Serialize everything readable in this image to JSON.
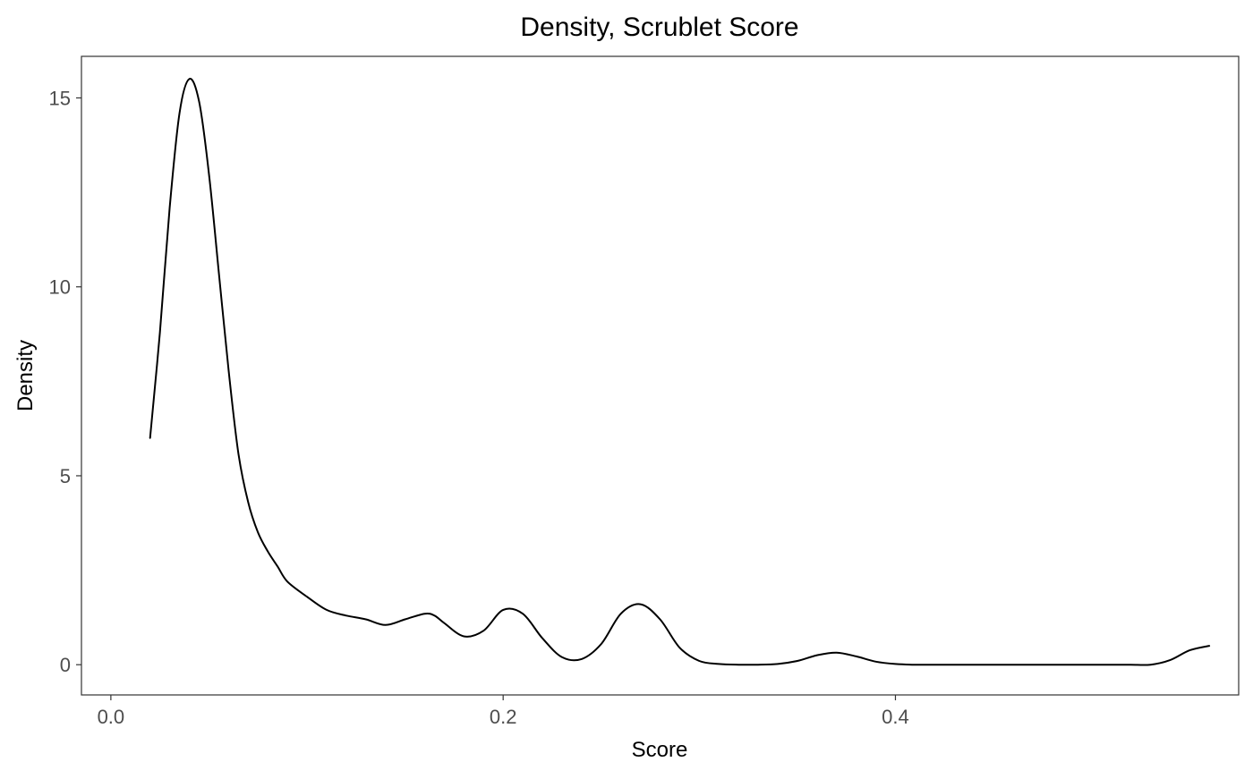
{
  "chart_data": {
    "type": "line",
    "title": "Density, Scrublet Score",
    "xlabel": "Score",
    "ylabel": "Density",
    "xlim": [
      -0.015,
      0.575
    ],
    "ylim": [
      -0.8,
      16.1
    ],
    "x_ticks": [
      0.0,
      0.2,
      0.4
    ],
    "x_tick_labels": [
      "0.0",
      "0.2",
      "0.4"
    ],
    "y_ticks": [
      0,
      5,
      10,
      15
    ],
    "y_tick_labels": [
      "0",
      "5",
      "10",
      "15"
    ],
    "grid": false,
    "legend": "none",
    "line_color": "#000000",
    "series": [
      {
        "x": [
          0.02,
          0.025,
          0.03,
          0.035,
          0.04,
          0.045,
          0.05,
          0.055,
          0.06,
          0.065,
          0.07,
          0.075,
          0.08,
          0.085,
          0.09,
          0.1,
          0.11,
          0.12,
          0.13,
          0.14,
          0.15,
          0.16,
          0.165,
          0.17,
          0.18,
          0.19,
          0.2,
          0.21,
          0.22,
          0.23,
          0.24,
          0.25,
          0.26,
          0.27,
          0.28,
          0.29,
          0.3,
          0.31,
          0.32,
          0.33,
          0.34,
          0.35,
          0.36,
          0.37,
          0.38,
          0.39,
          0.4,
          0.41,
          0.42,
          0.43,
          0.44,
          0.45,
          0.46,
          0.47,
          0.48,
          0.49,
          0.5,
          0.51,
          0.52,
          0.53,
          0.54,
          0.55,
          0.56
        ],
        "y": [
          6.0,
          8.8,
          12.1,
          14.6,
          15.5,
          14.9,
          13.0,
          10.4,
          7.8,
          5.6,
          4.3,
          3.5,
          3.0,
          2.6,
          2.2,
          1.8,
          1.45,
          1.3,
          1.2,
          1.05,
          1.2,
          1.35,
          1.3,
          1.1,
          0.75,
          0.9,
          1.45,
          1.35,
          0.7,
          0.2,
          0.15,
          0.55,
          1.35,
          1.6,
          1.2,
          0.45,
          0.1,
          0.02,
          0.0,
          0.0,
          0.02,
          0.1,
          0.25,
          0.32,
          0.22,
          0.08,
          0.02,
          0.0,
          0.0,
          0.0,
          0.0,
          0.0,
          0.0,
          0.0,
          0.0,
          0.0,
          0.0,
          0.0,
          0.0,
          0.0,
          0.12,
          0.38,
          0.5
        ]
      }
    ]
  }
}
